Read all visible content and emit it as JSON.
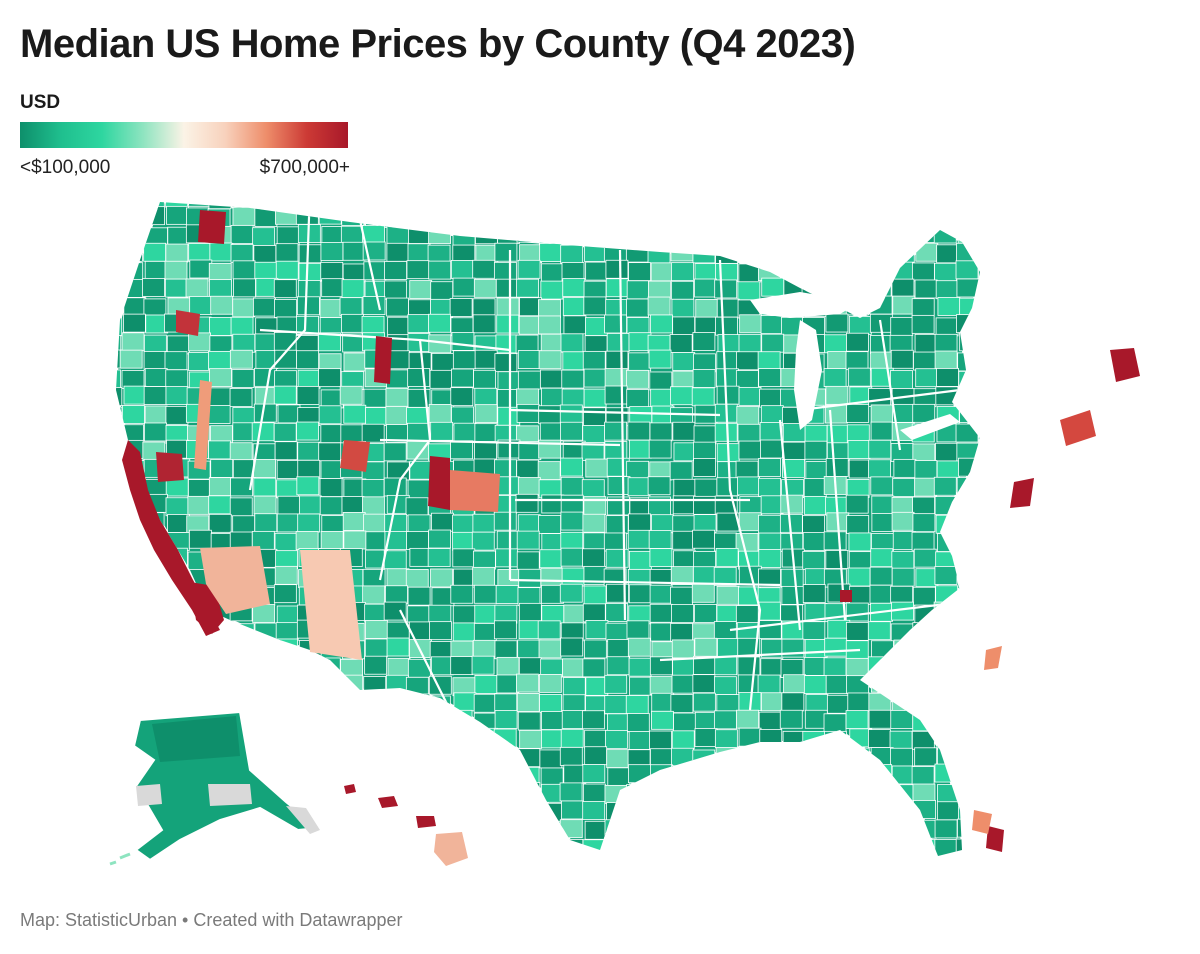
{
  "title": "Median US Home Prices by County (Q4 2023)",
  "legend": {
    "unit": "USD",
    "min_label": "<$100,000",
    "max_label": "$700,000+",
    "stops": [
      "#0e8f6b",
      "#1fbf8e",
      "#2ed6a0",
      "#8ee4c0",
      "#fbf3e6",
      "#f8d2bd",
      "#ee8e6b",
      "#cc3a35",
      "#a8182a"
    ]
  },
  "footer": "Map: StatisticUrban • Created with Datawrapper",
  "colors": {
    "low": "#0e8f6b",
    "mid_low": "#2ed6a0",
    "neutral": "#fbf3e6",
    "mid_high": "#ee8e6b",
    "high": "#a8182a",
    "border": "#ffffff"
  }
}
